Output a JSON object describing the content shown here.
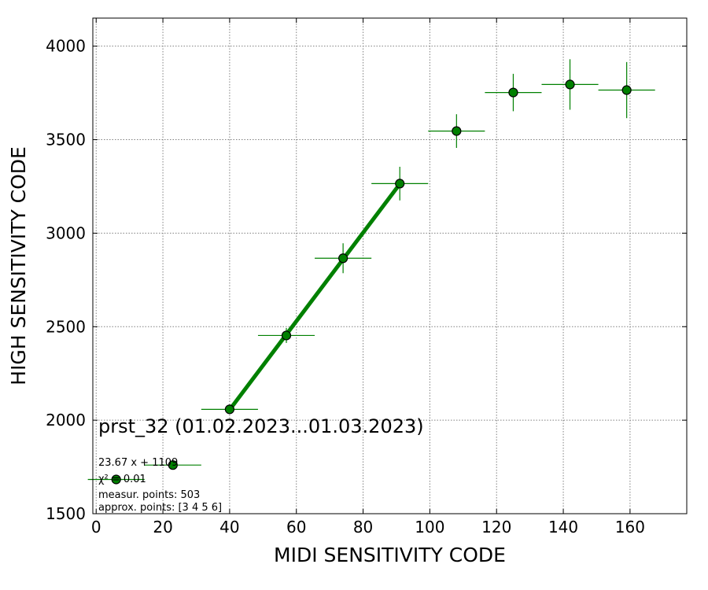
{
  "chart_data": {
    "type": "scatter",
    "xlabel": "MIDI SENSITIVITY CODE",
    "ylabel": "HIGH SENSITIVITY CODE",
    "xlim": [
      -1,
      177
    ],
    "ylim": [
      1500,
      4150
    ],
    "xticks": [
      0,
      20,
      40,
      60,
      80,
      100,
      120,
      140,
      160
    ],
    "yticks": [
      1500,
      2000,
      2500,
      3000,
      3500,
      4000
    ],
    "grid": true,
    "colors": {
      "marker": "#008000",
      "marker_edge": "#000000",
      "errorbar": "#008000",
      "fit": "#008000",
      "grid": "#808080"
    },
    "points": [
      {
        "x": 6,
        "y": 1683,
        "xerr": 8.5,
        "yerr": 0
      },
      {
        "x": 23,
        "y": 1760,
        "xerr": 8.5,
        "yerr": 0
      },
      {
        "x": 40,
        "y": 2058,
        "xerr": 8.5,
        "yerr": 0
      },
      {
        "x": 57,
        "y": 2453,
        "xerr": 8.5,
        "yerr": 40
      },
      {
        "x": 74,
        "y": 2866,
        "xerr": 8.5,
        "yerr": 80
      },
      {
        "x": 91,
        "y": 3265,
        "xerr": 8.5,
        "yerr": 90
      },
      {
        "x": 108,
        "y": 3546,
        "xerr": 8.5,
        "yerr": 90
      },
      {
        "x": 125,
        "y": 3752,
        "xerr": 8.5,
        "yerr": 100
      },
      {
        "x": 142,
        "y": 3795,
        "xerr": 8.5,
        "yerr": 135
      },
      {
        "x": 159,
        "y": 3765,
        "xerr": 8.5,
        "yerr": 150
      }
    ],
    "fit": {
      "slope": 23.67,
      "intercept": 1109,
      "x_range": [
        40,
        91
      ]
    },
    "annotations": {
      "title": "prst_32 (01.02.2023...01.03.2023)",
      "fit_equation": "23.67 x + 1109",
      "chi2": "χ² = 0.01",
      "measur_points": "measur. points: 503",
      "approx_points": "approx. points: [3 4 5 6]"
    }
  }
}
